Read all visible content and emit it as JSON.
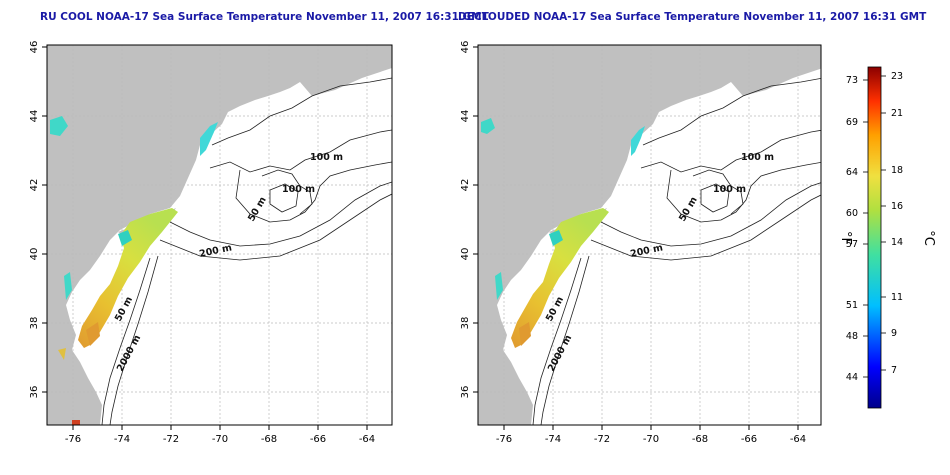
{
  "panels": [
    {
      "title": "RU COOL NOAA-17 Sea Surface Temperature November 11, 2007 16:31 GMT",
      "contour_labels": [
        "100 m",
        "100 m",
        "50 m",
        "200 m",
        "50 m",
        "2000 m"
      ]
    },
    {
      "title": "DECLOUDED NOAA-17 Sea Surface Temperature November 11, 2007 16:31 GMT",
      "contour_labels": [
        "100 m",
        "100 m",
        "50 m",
        "200 m",
        "50 m",
        "2000 m"
      ]
    }
  ],
  "axes": {
    "x_ticks": [
      "-76",
      "-74",
      "-72",
      "-70",
      "-68",
      "-66",
      "-64"
    ],
    "y_ticks": [
      "36",
      "38",
      "40",
      "42",
      "44",
      "46"
    ]
  },
  "colorbar": {
    "unit_f": "°F",
    "unit_c": "°C",
    "f_ticks": [
      "73",
      "69",
      "64",
      "60",
      "57",
      "51",
      "48",
      "44"
    ],
    "c_ticks": [
      "23",
      "21",
      "18",
      "16",
      "14",
      "11",
      "9",
      "7"
    ]
  },
  "colors": {
    "land": "#c0c0c0",
    "grid": "#bbbbbb",
    "warm": "#d9a040",
    "mid": "#e8e040",
    "cool": "#40d0d0",
    "title": "#1a1aa6"
  }
}
